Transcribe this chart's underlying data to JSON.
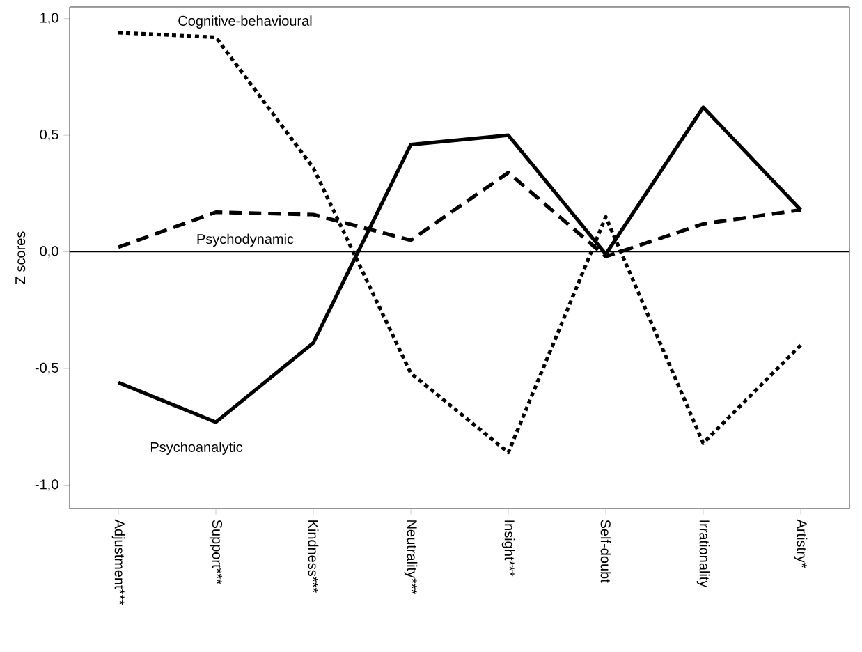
{
  "chart_data": {
    "type": "line",
    "ylabel": "Z scores",
    "categories": [
      "Adjustment***",
      "Support***",
      "Kindness***",
      "Neutrality***",
      "Insight***",
      "Self-doubt",
      "Irrationality",
      "Artistry*"
    ],
    "series": [
      {
        "name": "Cognitive-behavioural",
        "color": "#000000",
        "line_style": "dotted",
        "values": [
          0.94,
          0.92,
          0.36,
          -0.52,
          -0.86,
          0.15,
          -0.82,
          -0.4
        ]
      },
      {
        "name": "Psychodynamic",
        "color": "#000000",
        "line_style": "dashed",
        "values": [
          0.02,
          0.17,
          0.16,
          0.05,
          0.34,
          -0.02,
          0.12,
          0.18
        ]
      },
      {
        "name": "Psychoanalytic",
        "color": "#000000",
        "line_style": "solid",
        "values": [
          -0.56,
          -0.73,
          -0.39,
          0.46,
          0.5,
          -0.01,
          0.62,
          0.18
        ]
      }
    ],
    "ylim": [
      -1.1,
      1.05
    ],
    "yticks": [
      {
        "value": -1.0,
        "label": "-1,0"
      },
      {
        "value": -0.5,
        "label": "-0,5"
      },
      {
        "value": 0.0,
        "label": "0,0"
      },
      {
        "value": 0.5,
        "label": "0,5"
      },
      {
        "value": 1.0,
        "label": "1,0"
      }
    ],
    "ref_lines": [
      {
        "axis": "y",
        "value": 0,
        "color": "#000000"
      }
    ],
    "grid": false
  }
}
